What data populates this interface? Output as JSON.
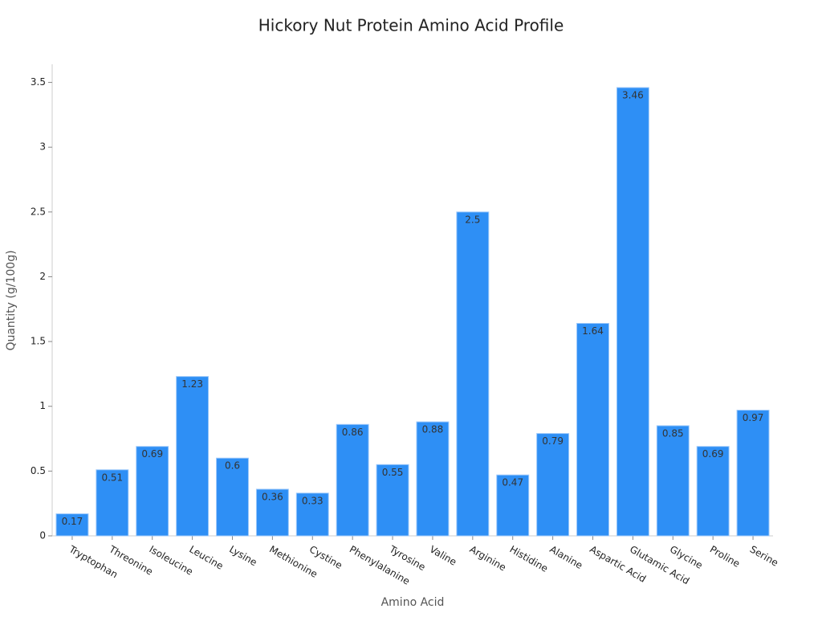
{
  "chart_data": {
    "type": "bar",
    "title": "Hickory Nut Protein Amino Acid Profile",
    "x_label": "Amino Acid",
    "y_label": "Quantity (g/100g)",
    "categories": [
      "Tryptophan",
      "Threonine",
      "Isoleucine",
      "Leucine",
      "Lysine",
      "Methionine",
      "Cystine",
      "Phenylalanine",
      "Tyrosine",
      "Valine",
      "Arginine",
      "Histidine",
      "Alanine",
      "Aspartic Acid",
      "Glutamic Acid",
      "Glycine",
      "Proline",
      "Serine"
    ],
    "values": [
      0.17,
      0.51,
      0.69,
      1.23,
      0.6,
      0.36,
      0.33,
      0.86,
      0.55,
      0.88,
      2.5,
      0.47,
      0.79,
      1.64,
      3.46,
      0.85,
      0.69,
      0.97
    ],
    "color": "#2e8ff5",
    "ylim": [
      0,
      3.64
    ],
    "yticks": [
      0,
      0.5,
      1,
      1.5,
      2,
      2.5,
      3,
      3.5
    ],
    "grid": false
  }
}
